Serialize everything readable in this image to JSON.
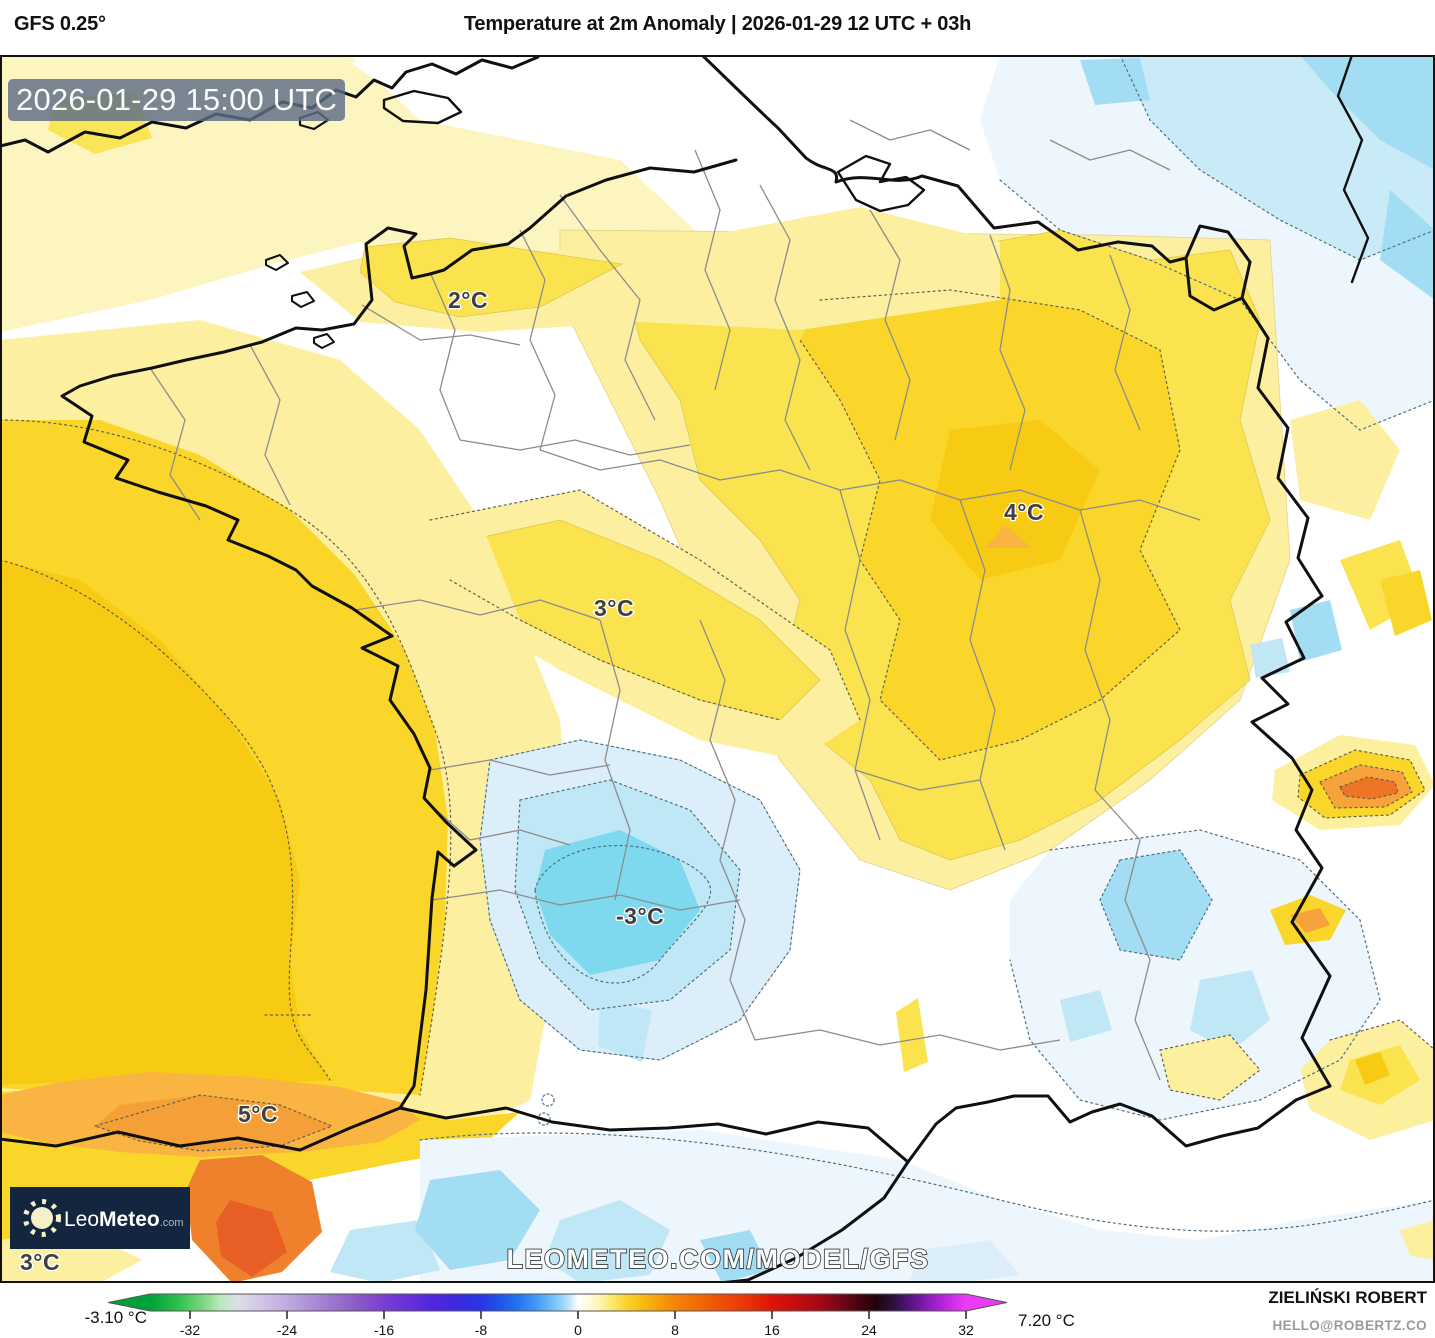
{
  "header": {
    "model_label": "GFS 0.25°",
    "title": "Temperature at 2m Anomaly | 2026-01-29 12 UTC + 03h"
  },
  "map": {
    "timestamp_badge": "2026-01-29 15:00 UTC",
    "watermark": "LEOMETEO.COM/MODEL/GFS",
    "logo": {
      "prefix": "Leo",
      "name": "Meteo",
      "tld": ".com"
    },
    "anomaly_labels": [
      {
        "id": "normandy",
        "text": "2°C"
      },
      {
        "id": "northeast",
        "text": "4°C"
      },
      {
        "id": "center",
        "text": "3°C"
      },
      {
        "id": "south-center",
        "text": "-3°C"
      },
      {
        "id": "pyrenees",
        "text": "5°C"
      },
      {
        "id": "southwest-corner",
        "text": "3°C"
      }
    ],
    "colors": {
      "pale_yellow": "#fdf5bf",
      "pale_yellow2": "#fcefa0",
      "yellow": "#fae34e",
      "gold": "#f9d629",
      "gold_deep": "#f7cb14",
      "orange_light": "#f9b441",
      "orange": "#f59f38",
      "orange_deep": "#f0812c",
      "orange_hot": "#e85f26",
      "pale_blue": "#edf6fc",
      "pale_blue2": "#dbeef9",
      "blue_mid": "#bfe7f6",
      "blue": "#a2ddf3",
      "cyan": "#7ed9ef"
    }
  },
  "footer": {
    "min_label": "-3.10 °C",
    "max_label": "7.20 °C",
    "credit_name": "ZIELIŃSKI ROBERT",
    "credit_email": "HELLO@ROBERTZ.CO",
    "colorbar": {
      "unit": "°C",
      "ticks": [
        -32,
        -24,
        -16,
        -8,
        0,
        8,
        16,
        24,
        32
      ],
      "range_min": -35.3,
      "range_max": 32,
      "gradient": [
        [
          0.0,
          "#00a13a"
        ],
        [
          0.034,
          "#2ebf4f"
        ],
        [
          0.064,
          "#79d67e"
        ],
        [
          0.086,
          "#bce8bd"
        ],
        [
          0.108,
          "#dcdee9"
        ],
        [
          0.138,
          "#d0c3e7"
        ],
        [
          0.168,
          "#c0aade"
        ],
        [
          0.198,
          "#ad8ed6"
        ],
        [
          0.227,
          "#9c73cf"
        ],
        [
          0.257,
          "#8b57c8"
        ],
        [
          0.287,
          "#7a3dd2"
        ],
        [
          0.316,
          "#6730da"
        ],
        [
          0.346,
          "#5226de"
        ],
        [
          0.376,
          "#3c28e1"
        ],
        [
          0.406,
          "#2737e5"
        ],
        [
          0.428,
          "#1e53ea"
        ],
        [
          0.45,
          "#2272f0"
        ],
        [
          0.472,
          "#4197f5"
        ],
        [
          0.495,
          "#74c3f9"
        ],
        [
          0.51,
          "#abdcfc"
        ],
        [
          0.5245,
          "#ffffff"
        ],
        [
          0.539,
          "#fffbd9"
        ],
        [
          0.554,
          "#fdf3a2"
        ],
        [
          0.569,
          "#fbe562"
        ],
        [
          0.584,
          "#fad22e"
        ],
        [
          0.599,
          "#f9c113"
        ],
        [
          0.614,
          "#f7ad0c"
        ],
        [
          0.628,
          "#f59a09"
        ],
        [
          0.643,
          "#f38607"
        ],
        [
          0.673,
          "#f16a06"
        ],
        [
          0.703,
          "#ee4d05"
        ],
        [
          0.733,
          "#e93306"
        ],
        [
          0.762,
          "#de1308"
        ],
        [
          0.792,
          "#c30d10"
        ],
        [
          0.822,
          "#a10916"
        ],
        [
          0.844,
          "#7a0715"
        ],
        [
          0.866,
          "#4d0410"
        ],
        [
          0.889,
          "#220208"
        ],
        [
          0.911,
          "#2d1040"
        ],
        [
          0.933,
          "#5a1483"
        ],
        [
          0.955,
          "#8f1cbb"
        ],
        [
          0.978,
          "#c428e4"
        ],
        [
          1.0,
          "#ea3cf6"
        ]
      ]
    }
  }
}
